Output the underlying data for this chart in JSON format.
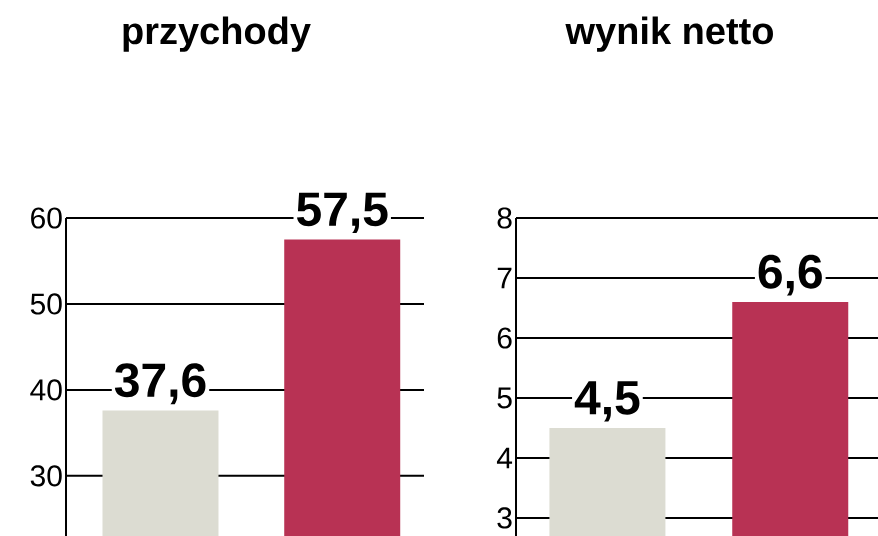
{
  "chart_data": [
    {
      "type": "bar",
      "title": "przychody",
      "categories": [
        null,
        null
      ],
      "values": [
        37.6,
        57.5
      ],
      "colors": [
        "#dcdcd2",
        "#b83254"
      ],
      "value_labels": [
        "37,6",
        "57,5"
      ],
      "ylim": [
        23,
        60
      ],
      "yticks": [
        30,
        40,
        50,
        60
      ],
      "grid": "y"
    },
    {
      "type": "bar",
      "title": "wynik netto",
      "categories": [
        null,
        null
      ],
      "values": [
        4.5,
        6.6
      ],
      "colors": [
        "#dcdcd2",
        "#b83254"
      ],
      "value_labels": [
        "4,5",
        "6,6"
      ],
      "ylim": [
        2.7,
        8
      ],
      "yticks": [
        3,
        4,
        5,
        6,
        7,
        8
      ],
      "grid": "y"
    }
  ]
}
